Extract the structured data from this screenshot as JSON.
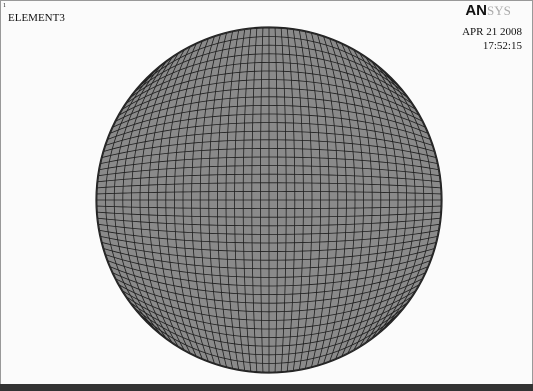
{
  "header": {
    "marker": "1",
    "title": "ELEMENT3",
    "logo_bold": "AN",
    "logo_light": "SYS",
    "date": "APR 21 2008",
    "time": "17:52:15"
  }
}
